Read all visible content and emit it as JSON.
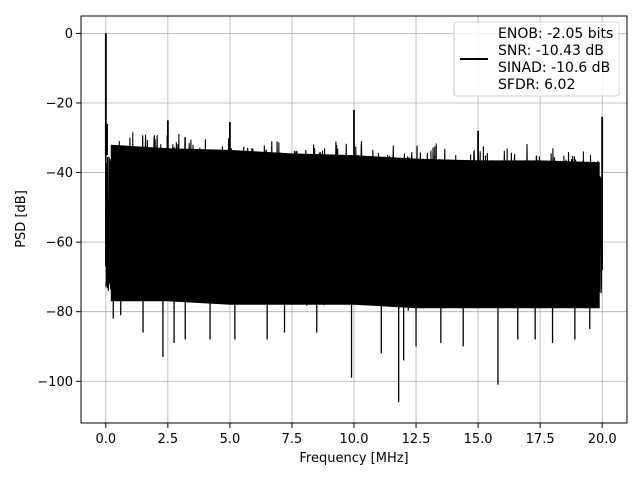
{
  "chart_data": {
    "type": "line",
    "title": "",
    "xlabel": "Frequency [MHz]",
    "ylabel": "PSD [dB]",
    "xlim": [
      -1.0,
      21.0
    ],
    "ylim": [
      -112,
      5
    ],
    "grid": true,
    "x_ticks": [
      0.0,
      2.5,
      5.0,
      7.5,
      10.0,
      12.5,
      15.0,
      17.5,
      20.0
    ],
    "x_tick_labels": [
      "0.0",
      "2.5",
      "5.0",
      "7.5",
      "10.0",
      "12.5",
      "15.0",
      "17.5",
      "20.0"
    ],
    "y_ticks": [
      0,
      -20,
      -40,
      -60,
      -80,
      -100
    ],
    "y_tick_labels": [
      "0",
      "−20",
      "−40",
      "−60",
      "−80",
      "−100"
    ],
    "legend": {
      "placement": "top-right",
      "lines": [
        "ENOB: -2.05 bits",
        "SNR: -10.43 dB",
        "SINAD: -10.6 dB",
        "SFDR: 6.02"
      ]
    },
    "series": [
      {
        "color": "#000000",
        "x_range": [
          0.0,
          20.0
        ],
        "noise_band": [
          {
            "x": 0.2,
            "top": -35,
            "bottom": -74
          },
          {
            "x": 2.5,
            "top": -36,
            "bottom": -74
          },
          {
            "x": 5.0,
            "top": -36.5,
            "bottom": -75
          },
          {
            "x": 7.5,
            "top": -37.5,
            "bottom": -75
          },
          {
            "x": 10.0,
            "top": -38,
            "bottom": -75
          },
          {
            "x": 12.5,
            "top": -39,
            "bottom": -76
          },
          {
            "x": 15.0,
            "top": -39.5,
            "bottom": -76
          },
          {
            "x": 17.5,
            "top": -39.5,
            "bottom": -76
          },
          {
            "x": 19.9,
            "top": -40,
            "bottom": -76
          }
        ],
        "spikes": [
          {
            "x": 0.0,
            "y": 0
          },
          {
            "x": 0.05,
            "y": -26
          },
          {
            "x": 1.25,
            "y": -32.5
          },
          {
            "x": 2.5,
            "y": -25
          },
          {
            "x": 5.0,
            "y": -25.5
          },
          {
            "x": 10.0,
            "y": -22
          },
          {
            "x": 15.0,
            "y": -28
          },
          {
            "x": 20.0,
            "y": -24
          }
        ],
        "dips": [
          {
            "x": 0.3,
            "y": -82
          },
          {
            "x": 0.6,
            "y": -81
          },
          {
            "x": 1.5,
            "y": -86
          },
          {
            "x": 2.3,
            "y": -93
          },
          {
            "x": 2.75,
            "y": -89
          },
          {
            "x": 3.2,
            "y": -88
          },
          {
            "x": 4.2,
            "y": -88
          },
          {
            "x": 5.2,
            "y": -88
          },
          {
            "x": 6.5,
            "y": -88
          },
          {
            "x": 7.2,
            "y": -86
          },
          {
            "x": 8.5,
            "y": -86
          },
          {
            "x": 9.9,
            "y": -99
          },
          {
            "x": 11.1,
            "y": -92
          },
          {
            "x": 11.8,
            "y": -106
          },
          {
            "x": 12.0,
            "y": -94
          },
          {
            "x": 12.5,
            "y": -90
          },
          {
            "x": 13.5,
            "y": -89
          },
          {
            "x": 14.4,
            "y": -90
          },
          {
            "x": 15.8,
            "y": -101
          },
          {
            "x": 16.6,
            "y": -88
          },
          {
            "x": 17.3,
            "y": -88
          },
          {
            "x": 18.0,
            "y": -89
          },
          {
            "x": 18.9,
            "y": -88
          },
          {
            "x": 19.5,
            "y": -85
          }
        ]
      }
    ]
  }
}
